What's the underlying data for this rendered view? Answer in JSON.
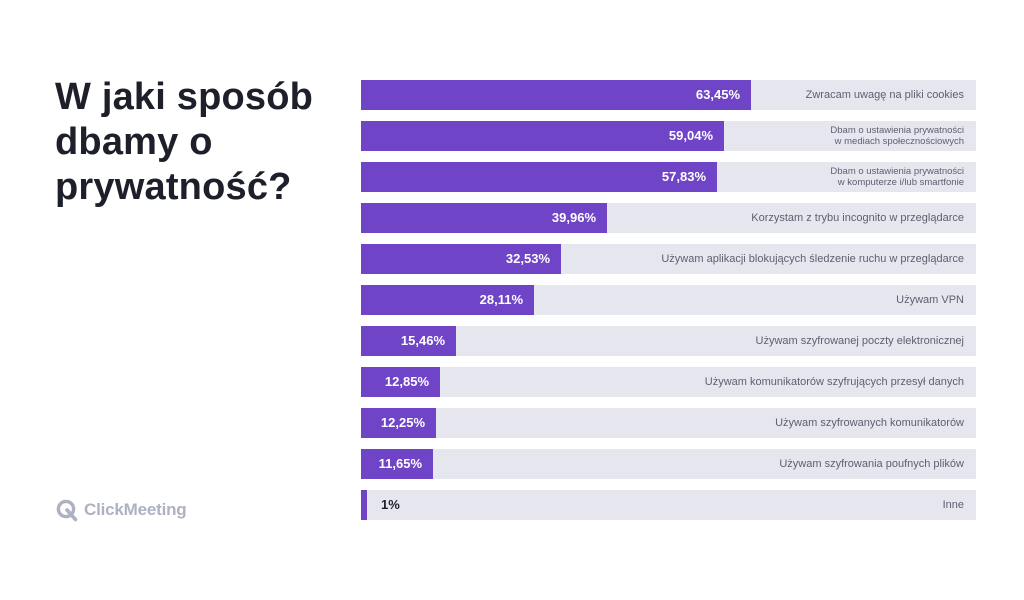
{
  "page": {
    "title_lines": [
      "W jaki sposób",
      "dbamy o",
      "prywatność?"
    ],
    "logo_text": "ClickMeeting",
    "logo_icon": "clickmeeting-q-icon",
    "colors": {
      "bar": "#6f44c7",
      "track": "#e6e6ef",
      "title": "#1d1f2a",
      "label": "#5d6070",
      "logo": "#aeb1c2"
    }
  },
  "chart_data": {
    "type": "bar",
    "orientation": "horizontal",
    "xlim": [
      0,
      100
    ],
    "categories": [
      [
        "Zwracam uwagę na pliki cookies"
      ],
      [
        "Dbam o ustawienia prywatności",
        "w mediach społecznościowych"
      ],
      [
        "Dbam o ustawienia prywatności",
        "w komputerze i/lub smartfonie"
      ],
      [
        "Korzystam z trybu incognito w przeglądarce"
      ],
      [
        "Używam aplikacji blokujących śledzenie ruchu w przeglądarce"
      ],
      [
        "Używam VPN"
      ],
      [
        "Używam szyfrowanej poczty elektronicznej"
      ],
      [
        "Używam komunikatorów szyfrujących przesył danych"
      ],
      [
        "Używam szyfrowanych komunikatorów"
      ],
      [
        "Używam szyfrowania poufnych plików"
      ],
      [
        "Inne"
      ]
    ],
    "values": [
      63.45,
      59.04,
      57.83,
      39.96,
      32.53,
      28.11,
      15.46,
      12.85,
      12.25,
      11.65,
      1
    ],
    "value_labels": [
      "63,45%",
      "59,04%",
      "57,83%",
      "39,96%",
      "32,53%",
      "28,11%",
      "15,46%",
      "12,85%",
      "12,25%",
      "11,65%",
      "1%"
    ]
  }
}
